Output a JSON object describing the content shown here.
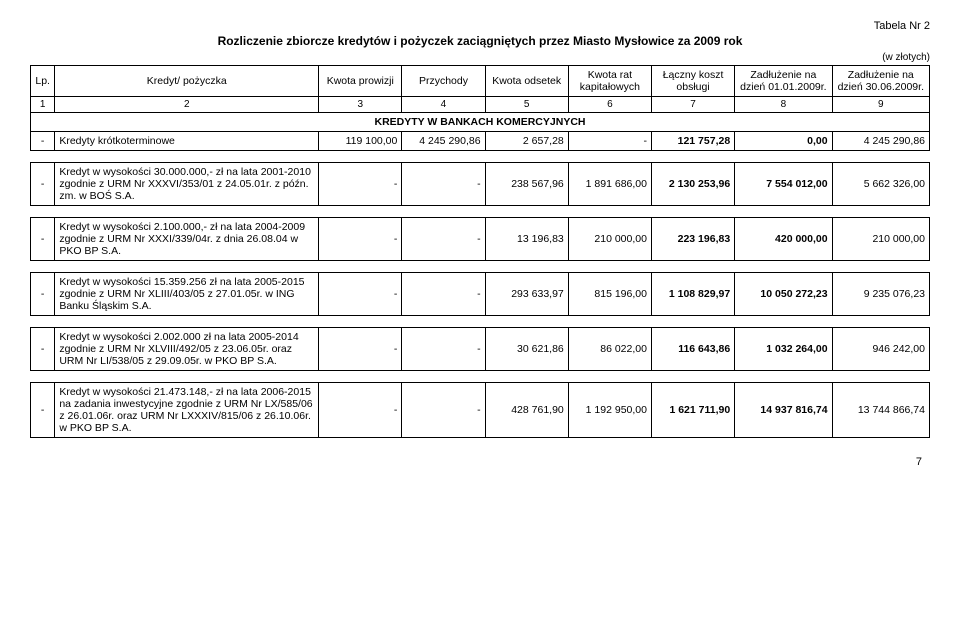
{
  "table_label": "Tabela Nr 2",
  "title": "Rozliczenie zbiorcze kredytów i pożyczek zaciągniętych przez Miasto Mysłowice za 2009 rok",
  "currency_note": "(w złotych)",
  "headers": {
    "lp": "Lp.",
    "name": "Kredyt/ pożyczka",
    "c3": "Kwota prowizji",
    "c4": "Przychody",
    "c5": "Kwota odsetek",
    "c6": "Kwota rat kapitałowych",
    "c7": "Łączny koszt obsługi",
    "c8": "Zadłużenie na dzień 01.01.2009r.",
    "c9": "Zadłużenie na dzień 30.06.2009r."
  },
  "colnums": [
    "1",
    "2",
    "3",
    "4",
    "5",
    "6",
    "7",
    "8",
    "9"
  ],
  "section_title": "KREDYTY W BANKACH KOMERCYJNYCH",
  "rows": [
    {
      "lp": "-",
      "desc": "Kredyty krótkoterminowe",
      "v3": "119 100,00",
      "v4": "4 245 290,86",
      "v5": "2 657,28",
      "v6": "-",
      "v7": "121 757,28",
      "v8": "0,00",
      "v9": "4 245 290,86"
    },
    {
      "lp": "-",
      "desc": "Kredyt w wysokości 30.000.000,- zł na lata 2001-2010 zgodnie z URM Nr XXXVI/353/01 z 24.05.01r. z późn. zm. w BOŚ S.A.",
      "v3": "-",
      "v4": "-",
      "v5": "238 567,96",
      "v6": "1 891 686,00",
      "v7": "2 130 253,96",
      "v8": "7 554 012,00",
      "v9": "5 662 326,00"
    },
    {
      "lp": "-",
      "desc": "Kredyt w wysokości 2.100.000,- zł na lata 2004-2009 zgodnie z URM Nr XXXI/339/04r. z dnia 26.08.04 w PKO BP S.A.",
      "v3": "-",
      "v4": "-",
      "v5": "13 196,83",
      "v6": "210 000,00",
      "v7": "223 196,83",
      "v8": "420 000,00",
      "v9": "210 000,00"
    },
    {
      "lp": "-",
      "desc": "Kredyt w wysokości 15.359.256 zł na lata 2005-2015 zgodnie z URM Nr XLIII/403/05 z 27.01.05r. w ING Banku Śląskim S.A.",
      "v3": "-",
      "v4": "-",
      "v5": "293 633,97",
      "v6": "815 196,00",
      "v7": "1 108 829,97",
      "v8": "10 050 272,23",
      "v9": "9 235 076,23"
    },
    {
      "lp": "-",
      "desc": "Kredyt w wysokości 2.002.000 zł na lata 2005-2014 zgodnie z URM Nr XLVIII/492/05 z 23.06.05r. oraz URM Nr LI/538/05 z 29.09.05r. w PKO BP S.A.",
      "v3": "-",
      "v4": "-",
      "v5": "30 621,86",
      "v6": "86 022,00",
      "v7": "116 643,86",
      "v8": "1 032 264,00",
      "v9": "946 242,00"
    },
    {
      "lp": "-",
      "desc": "Kredyt w wysokości 21.473.148,- zł na lata 2006-2015 na zadania inwestycyjne zgodnie z URM Nr LX/585/06 z 26.01.06r. oraz URM Nr LXXXIV/815/06 z 26.10.06r. w PKO BP S.A.",
      "v3": "-",
      "v4": "-",
      "v5": "428 761,90",
      "v6": "1 192 950,00",
      "v7": "1 621 711,90",
      "v8": "14 937 816,74",
      "v9": "13 744 866,74"
    }
  ],
  "page_number": "7"
}
